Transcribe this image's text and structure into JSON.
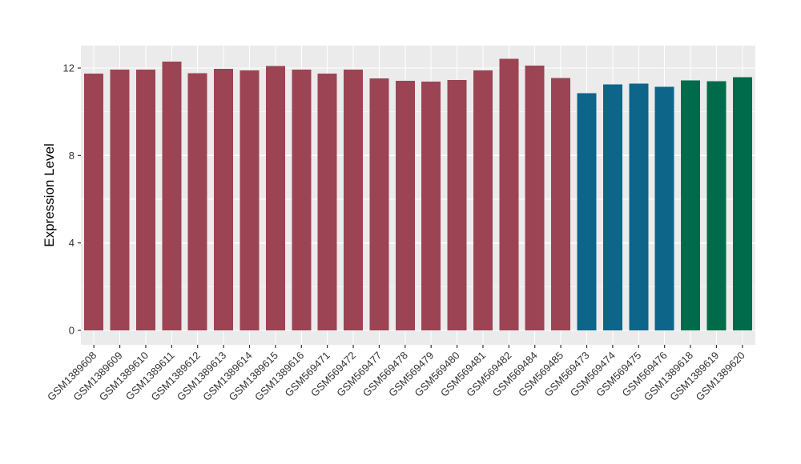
{
  "figure": {
    "background": "#FFFFFF",
    "panel_background": "#EBEBEB",
    "grid_color": "#FFFFFF",
    "axis_text_color": "#333333",
    "axis_title_color": "#000000",
    "tick_mark_color": "#333333"
  },
  "chart_data": {
    "type": "bar",
    "title": "",
    "xlabel": "",
    "ylabel": "Expression Level",
    "ylim": [
      0,
      13
    ],
    "yticks": [
      0,
      4,
      8,
      12
    ],
    "yticks_minor": [
      2,
      6,
      10
    ],
    "grid": "on",
    "legend": "none",
    "categories": [
      "GSM1389608",
      "GSM1389609",
      "GSM1389610",
      "GSM1389611",
      "GSM1389612",
      "GSM1389613",
      "GSM1389614",
      "GSM1389615",
      "GSM1389616",
      "GSM569471",
      "GSM569472",
      "GSM569477",
      "GSM569478",
      "GSM569479",
      "GSM569480",
      "GSM569481",
      "GSM569482",
      "GSM569484",
      "GSM569485",
      "GSM569473",
      "GSM569474",
      "GSM569475",
      "GSM569476",
      "GSM1389618",
      "GSM1389619",
      "GSM1389620"
    ],
    "values": [
      11.75,
      11.92,
      11.92,
      12.3,
      11.76,
      11.97,
      11.89,
      12.09,
      11.92,
      11.75,
      11.92,
      11.52,
      11.41,
      11.38,
      11.45,
      11.9,
      12.43,
      12.12,
      11.55,
      10.85,
      11.26,
      11.28,
      11.14,
      11.44,
      11.4,
      11.58
    ],
    "colors": [
      "#9C4454",
      "#9C4454",
      "#9C4454",
      "#9C4454",
      "#9C4454",
      "#9C4454",
      "#9C4454",
      "#9C4454",
      "#9C4454",
      "#9C4454",
      "#9C4454",
      "#9C4454",
      "#9C4454",
      "#9C4454",
      "#9C4454",
      "#9C4454",
      "#9C4454",
      "#9C4454",
      "#9C4454",
      "#0D6589",
      "#0D6589",
      "#0D6589",
      "#0D6589",
      "#006B4A",
      "#006B4A",
      "#006B4A"
    ],
    "color_groups": [
      {
        "color": "#9C4454",
        "n_bars": 19
      },
      {
        "color": "#0D6589",
        "n_bars": 4
      },
      {
        "color": "#006B4A",
        "n_bars": 3
      }
    ]
  }
}
